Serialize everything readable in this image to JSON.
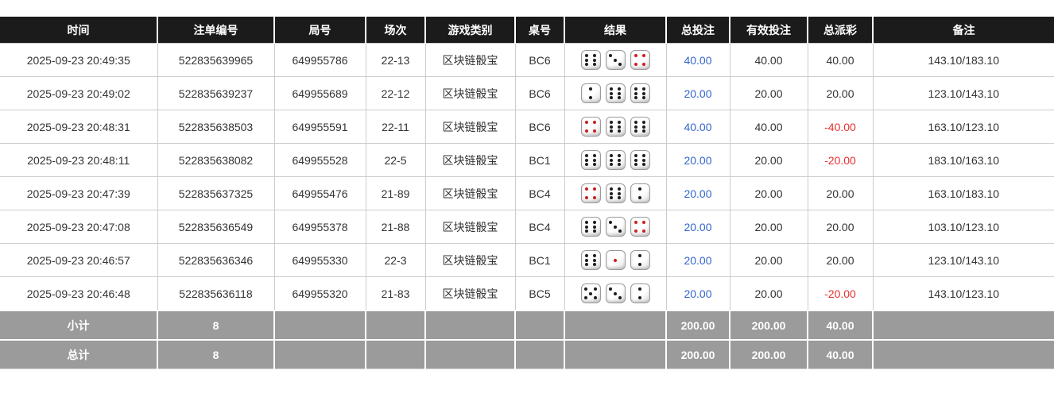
{
  "colors": {
    "header_bg": "#1b1b1b",
    "header_text": "#ffffff",
    "bet_link_blue": "#3366cc",
    "negative_red": "#e63030",
    "footer_bg": "#9b9b9b",
    "row_border": "#cccccc"
  },
  "table": {
    "columns": [
      {
        "key": "time",
        "label": "时间"
      },
      {
        "key": "bet_id",
        "label": "注单编号"
      },
      {
        "key": "round_id",
        "label": "局号"
      },
      {
        "key": "session",
        "label": "场次"
      },
      {
        "key": "game_type",
        "label": "游戏类别"
      },
      {
        "key": "table_no",
        "label": "桌号"
      },
      {
        "key": "result",
        "label": "结果"
      },
      {
        "key": "total_bet",
        "label": "总投注"
      },
      {
        "key": "valid_bet",
        "label": "有效投注"
      },
      {
        "key": "payout",
        "label": "总派彩"
      },
      {
        "key": "remark",
        "label": "备注"
      }
    ],
    "rows": [
      {
        "time": "2025-09-23 20:49:35",
        "bet_id": "522835639965",
        "round_id": "649955786",
        "session": "22-13",
        "game_type": "区块链骰宝",
        "table_no": "BC6",
        "result": [
          {
            "value": 6,
            "color": "black"
          },
          {
            "value": 3,
            "color": "black"
          },
          {
            "value": 4,
            "color": "red"
          }
        ],
        "total_bet": "40.00",
        "valid_bet": "40.00",
        "payout": "40.00",
        "remark": "143.10/183.10"
      },
      {
        "time": "2025-09-23 20:49:02",
        "bet_id": "522835639237",
        "round_id": "649955689",
        "session": "22-12",
        "game_type": "区块链骰宝",
        "table_no": "BC6",
        "result": [
          {
            "value": 2,
            "color": "black"
          },
          {
            "value": 6,
            "color": "black"
          },
          {
            "value": 6,
            "color": "black"
          }
        ],
        "total_bet": "20.00",
        "valid_bet": "20.00",
        "payout": "20.00",
        "remark": "123.10/143.10"
      },
      {
        "time": "2025-09-23 20:48:31",
        "bet_id": "522835638503",
        "round_id": "649955591",
        "session": "22-11",
        "game_type": "区块链骰宝",
        "table_no": "BC6",
        "result": [
          {
            "value": 4,
            "color": "red"
          },
          {
            "value": 6,
            "color": "black"
          },
          {
            "value": 6,
            "color": "black"
          }
        ],
        "total_bet": "40.00",
        "valid_bet": "40.00",
        "payout": "-40.00",
        "remark": "163.10/123.10"
      },
      {
        "time": "2025-09-23 20:48:11",
        "bet_id": "522835638082",
        "round_id": "649955528",
        "session": "22-5",
        "game_type": "区块链骰宝",
        "table_no": "BC1",
        "result": [
          {
            "value": 6,
            "color": "black"
          },
          {
            "value": 6,
            "color": "black"
          },
          {
            "value": 6,
            "color": "black"
          }
        ],
        "total_bet": "20.00",
        "valid_bet": "20.00",
        "payout": "-20.00",
        "remark": "183.10/163.10"
      },
      {
        "time": "2025-09-23 20:47:39",
        "bet_id": "522835637325",
        "round_id": "649955476",
        "session": "21-89",
        "game_type": "区块链骰宝",
        "table_no": "BC4",
        "result": [
          {
            "value": 4,
            "color": "red"
          },
          {
            "value": 6,
            "color": "black"
          },
          {
            "value": 2,
            "color": "black"
          }
        ],
        "total_bet": "20.00",
        "valid_bet": "20.00",
        "payout": "20.00",
        "remark": "163.10/183.10"
      },
      {
        "time": "2025-09-23 20:47:08",
        "bet_id": "522835636549",
        "round_id": "649955378",
        "session": "21-88",
        "game_type": "区块链骰宝",
        "table_no": "BC4",
        "result": [
          {
            "value": 6,
            "color": "black"
          },
          {
            "value": 3,
            "color": "black"
          },
          {
            "value": 4,
            "color": "red"
          }
        ],
        "total_bet": "20.00",
        "valid_bet": "20.00",
        "payout": "20.00",
        "remark": "103.10/123.10"
      },
      {
        "time": "2025-09-23 20:46:57",
        "bet_id": "522835636346",
        "round_id": "649955330",
        "session": "22-3",
        "game_type": "区块链骰宝",
        "table_no": "BC1",
        "result": [
          {
            "value": 6,
            "color": "black"
          },
          {
            "value": 1,
            "color": "red"
          },
          {
            "value": 2,
            "color": "black"
          }
        ],
        "total_bet": "20.00",
        "valid_bet": "20.00",
        "payout": "20.00",
        "remark": "123.10/143.10"
      },
      {
        "time": "2025-09-23 20:46:48",
        "bet_id": "522835636118",
        "round_id": "649955320",
        "session": "21-83",
        "game_type": "区块链骰宝",
        "table_no": "BC5",
        "result": [
          {
            "value": 5,
            "color": "black"
          },
          {
            "value": 3,
            "color": "black"
          },
          {
            "value": 2,
            "color": "black"
          }
        ],
        "total_bet": "20.00",
        "valid_bet": "20.00",
        "payout": "-20.00",
        "remark": "143.10/123.10"
      }
    ],
    "subtotal": {
      "label": "小计",
      "count": "8",
      "total_bet": "200.00",
      "valid_bet": "200.00",
      "payout": "40.00"
    },
    "total": {
      "label": "总计",
      "count": "8",
      "total_bet": "200.00",
      "valid_bet": "200.00",
      "payout": "40.00"
    }
  }
}
